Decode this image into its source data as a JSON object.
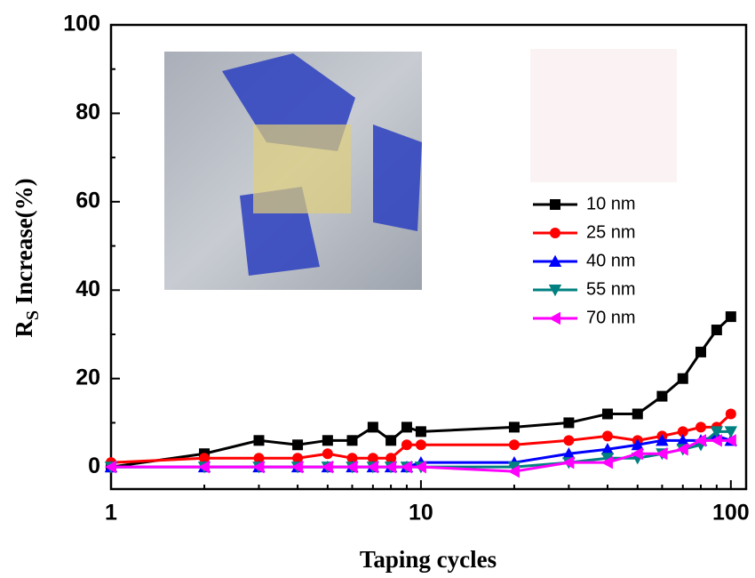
{
  "chart_data": {
    "type": "line",
    "xlabel": "Taping cycles",
    "ylabel": "R",
    "ylabel_sub": "S",
    "ylabel_rest": " Increase(%)",
    "log_x": true,
    "x": [
      1,
      2,
      3,
      4,
      5,
      6,
      7,
      8,
      9,
      10,
      20,
      30,
      40,
      50,
      60,
      70,
      80,
      90,
      100
    ],
    "xlim": [
      1,
      112
    ],
    "xticks": [
      1,
      10,
      100
    ],
    "xticks_minor": [
      2,
      3,
      4,
      5,
      6,
      7,
      8,
      9,
      20,
      30,
      40,
      50,
      60,
      70,
      80,
      90
    ],
    "ylim": [
      -5,
      100
    ],
    "yticks": [
      0,
      20,
      40,
      60,
      80,
      100
    ],
    "yticks_minor": [
      10,
      30,
      50,
      70,
      90
    ],
    "legend": "right",
    "series": [
      {
        "name": "10 nm",
        "color": "#000000",
        "marker": "square",
        "values": [
          0,
          3,
          6,
          5,
          6,
          6,
          9,
          6,
          9,
          8,
          9,
          10,
          12,
          12,
          16,
          20,
          26,
          31,
          34
        ]
      },
      {
        "name": "25 nm",
        "color": "#ff0000",
        "marker": "circle",
        "values": [
          1,
          2,
          2,
          2,
          3,
          2,
          2,
          2,
          5,
          5,
          5,
          6,
          7,
          6,
          7,
          8,
          9,
          9,
          12
        ]
      },
      {
        "name": "40 nm",
        "color": "#0000ff",
        "marker": "triangle-up",
        "values": [
          0,
          0,
          0,
          0,
          0,
          0,
          0,
          0,
          0,
          1,
          1,
          3,
          4,
          5,
          6,
          6,
          6,
          7,
          6
        ]
      },
      {
        "name": "55 nm",
        "color": "#008080",
        "marker": "triangle-down",
        "values": [
          0,
          0,
          0,
          0,
          0,
          0,
          0,
          0,
          0,
          0,
          0,
          1,
          2,
          2,
          3,
          4,
          5,
          8,
          8
        ]
      },
      {
        "name": "70 nm",
        "color": "#ff00ff",
        "marker": "triangle-left",
        "values": [
          0,
          0,
          0,
          0,
          0,
          0,
          0,
          0,
          0,
          0,
          -1,
          1,
          1,
          3,
          3,
          4,
          6,
          6,
          6
        ]
      }
    ]
  }
}
